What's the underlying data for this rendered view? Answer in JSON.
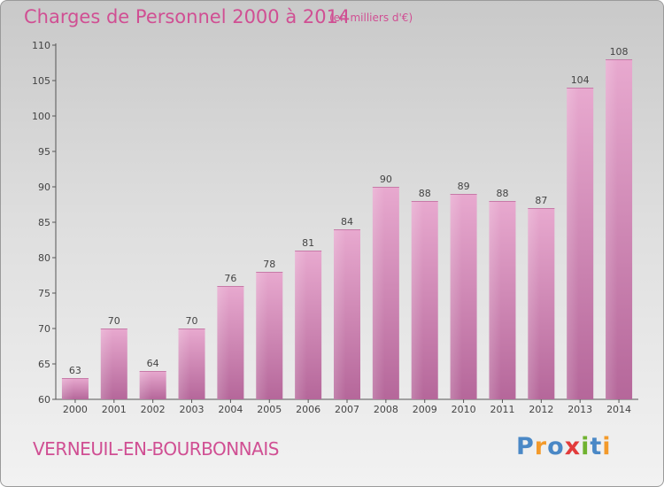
{
  "header": {
    "title": "Charges de Personnel 2000 à 2014",
    "unit": "(en milliers d'€)"
  },
  "footer": {
    "city": "VERNEUIL-EN-BOURBONNAIS",
    "logo": "Proxiti"
  },
  "colors": {
    "title": "#d04f93",
    "bar_light": "#e8a9cf",
    "bar_dark": "#b5679a",
    "logo_letters": [
      "#4a88c6",
      "#f39a2b",
      "#4a88c6",
      "#e23b3b",
      "#6fb22f",
      "#4a88c6",
      "#f39a2b"
    ]
  },
  "chart_data": {
    "type": "bar",
    "title": "Charges de Personnel 2000 à 2014",
    "subtitle": "(en milliers d'€)",
    "categories": [
      "2000",
      "2001",
      "2002",
      "2003",
      "2004",
      "2005",
      "2006",
      "2007",
      "2008",
      "2009",
      "2010",
      "2011",
      "2012",
      "2013",
      "2014"
    ],
    "values": [
      63,
      70,
      64,
      70,
      76,
      78,
      81,
      84,
      90,
      88,
      89,
      88,
      87,
      104,
      108
    ],
    "ylim": [
      60,
      110
    ],
    "yticks": [
      60,
      65,
      70,
      75,
      80,
      85,
      90,
      95,
      100,
      105,
      110
    ],
    "grid": false,
    "xlabel": "",
    "ylabel": ""
  }
}
